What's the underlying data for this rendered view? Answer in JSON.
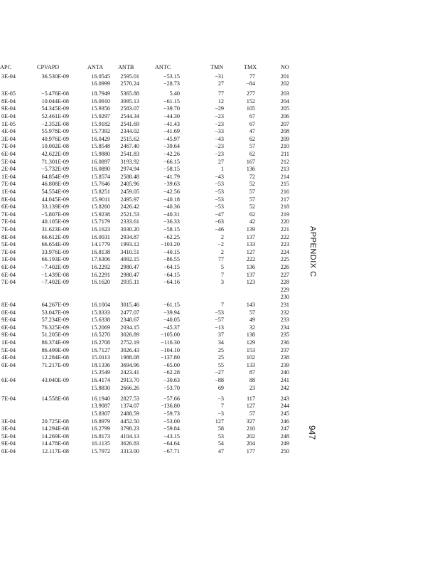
{
  "columns": [
    "APC",
    "CPVAPD",
    "ANTA",
    "ANTB",
    "ANTC",
    "TMN",
    "TMX",
    "NO"
  ],
  "rows": [
    [
      "3E-04",
      "36.530E-09",
      "16.0545",
      "2595.01",
      "−53.15",
      "−31",
      "77",
      "201"
    ],
    [
      "",
      "",
      "16.0999",
      "2570.24",
      "−28.73",
      "27",
      "−84",
      "202"
    ],
    [
      "3E-05",
      "−5.476E-08",
      "18.7949",
      "5365.88",
      "5.40",
      "77",
      "277",
      "203"
    ],
    [
      "8E-04",
      "10.044E-08",
      "16.0910",
      "3095.13",
      "−61.15",
      "12",
      "152",
      "204"
    ],
    [
      "9E-04",
      "54.345E-09",
      "15.9356",
      "2583.07",
      "−39.70",
      "−29",
      "105",
      "205"
    ],
    [
      "0E-04",
      "52.461E-09",
      "15.9297",
      "2544.34",
      "−44.30",
      "−23",
      "67",
      "206"
    ],
    [
      "1E-05",
      "−2.352E-08",
      "15.9182",
      "2541.69",
      "−41.43",
      "−23",
      "67",
      "207"
    ],
    [
      "4E-04",
      "55.978E-09",
      "15.7392",
      "2344.02",
      "−41.69",
      "−33",
      "47",
      "208"
    ],
    [
      "3E-04",
      "40.976E-09",
      "16.0429",
      "2515.62",
      "−45.97",
      "−43",
      "62",
      "209"
    ],
    [
      "7E-04",
      "10.002E-08",
      "15.8548",
      "2467.40",
      "−39.64",
      "−23",
      "57",
      "210"
    ],
    [
      "6E-04",
      "42.622E-09",
      "15.9880",
      "2541.83",
      "−42.26",
      "−23",
      "62",
      "211"
    ],
    [
      "5E-04",
      "71.301E-09",
      "16.0897",
      "3193.92",
      "−66.15",
      "27",
      "167",
      "212"
    ],
    [
      "2E-04",
      "−5.732E-09",
      "16.0890",
      "2974.94",
      "−58.15",
      "1",
      "136",
      "213"
    ],
    [
      "1E-04",
      "64.854E-09",
      "15.8574",
      "2588.48",
      "−41.79",
      "−43",
      "72",
      "214"
    ],
    [
      "7E-04",
      "46.808E-09",
      "15.7646",
      "2405.96",
      "−39.63",
      "−53",
      "52",
      "215"
    ],
    [
      "1E-04",
      "54.554E-09",
      "15.8251",
      "2459.05",
      "−42.56",
      "−53",
      "57",
      "216"
    ],
    [
      "8E-04",
      "44.045E-09",
      "15.9011",
      "2495.97",
      "−40.18",
      "−53",
      "57",
      "217"
    ],
    [
      "6E-04",
      "33.139E-09",
      "15.8260",
      "2426.42",
      "−40.36",
      "−53",
      "52",
      "218"
    ],
    [
      "7E-04",
      "−5.807E-09",
      "15.9238",
      "2521.53",
      "−40.31",
      "−47",
      "62",
      "219"
    ],
    [
      "7E-04",
      "40.105E-09",
      "15.7179",
      "2333.61",
      "−36.33",
      "−63",
      "42",
      "220"
    ],
    [
      "7E-04",
      "31.623E-09",
      "16.1623",
      "3030.20",
      "−58.15",
      "−46",
      "139",
      "221"
    ],
    [
      "8E-04",
      "66.612E-09",
      "16.0031",
      "2934.87",
      "−62.25",
      "2",
      "137",
      "222"
    ],
    [
      "5E-04",
      "66.654E-09",
      "14.1779",
      "1993.12",
      "−103.20",
      "−2",
      "133",
      "223"
    ],
    [
      "7E-04",
      "33.976E-09",
      "16.8138",
      "3410.51",
      "−40.15",
      "2",
      "127",
      "224"
    ],
    [
      "1E-04",
      "66.193E-09",
      "17.6306",
      "4092.15",
      "−86.55",
      "77",
      "222",
      "225"
    ],
    [
      "6E-04",
      "−7.402E-09",
      "16.2292",
      "2980.47",
      "−64.15",
      "5",
      "136",
      "226"
    ],
    [
      "6E-04",
      "−1.439E-08",
      "16.2291",
      "2980.47",
      "−64.15",
      "7",
      "137",
      "227"
    ],
    [
      "7E-04",
      "−7.402E-09",
      "16.1620",
      "2935.11",
      "−64.16",
      "3",
      "123",
      "228"
    ],
    [
      "",
      "",
      "",
      "",
      "",
      "",
      "",
      "229"
    ],
    [
      "",
      "",
      "",
      "",
      "",
      "",
      "",
      "230"
    ],
    [
      "8E-04",
      "64.267E-09",
      "16.1004",
      "3015.46",
      "−61.15",
      "7",
      "143",
      "231"
    ],
    [
      "0E-04",
      "53.047E-09",
      "15.8333",
      "2477.07",
      "−39.94",
      "−53",
      "57",
      "232"
    ],
    [
      "9E-04",
      "57.234E-09",
      "15.6338",
      "2348.67",
      "−40.05",
      "−57",
      "49",
      "233"
    ],
    [
      "6E-04",
      "76.325E-09",
      "15.2069",
      "2034.15",
      "−45.37",
      "−13",
      "32",
      "234"
    ],
    [
      "9E-04",
      "51.205E-09",
      "16.5270",
      "3026.89",
      "−105.00",
      "37",
      "138",
      "235"
    ],
    [
      "1E-04",
      "86.374E-09",
      "16.2708",
      "2752.19",
      "−116.30",
      "34",
      "129",
      "236"
    ],
    [
      "5E-04",
      "86.499E-09",
      "16.7127",
      "3026.43",
      "−104.10",
      "25",
      "153",
      "237"
    ],
    [
      "4E-04",
      "12.284E-08",
      "15.0113",
      "1988.08",
      "−137.80",
      "25",
      "102",
      "238"
    ],
    [
      "0E-04",
      "71.217E-09",
      "18.1336",
      "3694.96",
      "−65.00",
      "55",
      "133",
      "239"
    ],
    [
      "",
      "",
      "15.3549",
      "2423.41",
      "−62.28",
      "−27",
      "87",
      "240"
    ],
    [
      "6E-04",
      "43.040E-09",
      "16.4174",
      "2913.70",
      "−30.63",
      "−88",
      "88",
      "241"
    ],
    [
      "",
      "",
      "15.8830",
      "2666.26",
      "−53.70",
      "69",
      "23",
      "242"
    ],
    [
      "7E-04",
      "14.558E-08",
      "16.1940",
      "2827.53",
      "−57.66",
      "−3",
      "117",
      "243"
    ],
    [
      "",
      "",
      "13.9087",
      "1374.07",
      "−136.80",
      "7",
      "127",
      "244"
    ],
    [
      "",
      "",
      "15.8307",
      "2488.59",
      "−59.73",
      "−3",
      "57",
      "245"
    ],
    [
      "3E-04",
      "20.725E-08",
      "16.8979",
      "4452.50",
      "−53.00",
      "127",
      "327",
      "246"
    ],
    [
      "3E-04",
      "14.294E-08",
      "16.2799",
      "3798.23",
      "−59.84",
      "58",
      "210",
      "247"
    ],
    [
      "5E-04",
      "14.269E-08",
      "16.8173",
      "4104.13",
      "−43.15",
      "53",
      "202",
      "248"
    ],
    [
      "9E-04",
      "14.478E-08",
      "16.1135",
      "3626.83",
      "−64.64",
      "54",
      "204",
      "249"
    ],
    [
      "0E-04",
      "12.117E-08",
      "15.7972",
      "3313.00",
      "−67.71",
      "47",
      "177",
      "250"
    ]
  ],
  "side_label": "APPENDIX   C",
  "page_number": "947"
}
